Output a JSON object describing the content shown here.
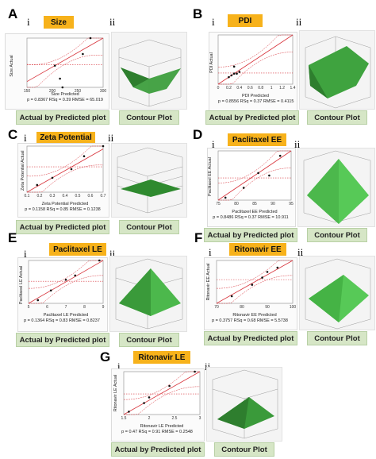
{
  "panels": {
    "A": {
      "letter": "A",
      "left_label": "i",
      "right_label": "ii",
      "tag": "Size",
      "ylabel": "Size Actual",
      "pred_label": "Size Predicted",
      "stats": "p = 0.8367 RSq = 0.39 RMSE = 65.019",
      "xticks": [
        "150",
        "200",
        "250",
        "300"
      ],
      "btn_left": "Actual by Predicted plot",
      "btn_right": "Contour Plot"
    },
    "B": {
      "letter": "B",
      "left_label": "i",
      "right_label": "ii",
      "tag": "PDI",
      "ylabel": "PDI Actual",
      "pred_label": "PDI Predicted",
      "stats": "p = 0.8556 RSq = 0.37 RMSE = 0.4115",
      "xticks": [
        "0",
        "0.2",
        "0.4",
        "0.6",
        "0.8",
        "1",
        "1.2",
        "1.4"
      ],
      "btn_left": "Actual by Predicted plot",
      "btn_right": "Contour Plot"
    },
    "C": {
      "letter": "C",
      "left_label": "i",
      "right_label": "ii",
      "tag": "Zeta Potential",
      "ylabel": "Zeta Potential Actual",
      "pred_label": "Zeta Potential Predicted",
      "stats": "p = 0.1158 RSq = 0.85 RMSE = 0.1238",
      "xticks": [
        "0.1",
        "0.2",
        "0.3",
        "0.4",
        "0.5",
        "0.6",
        "0.7"
      ],
      "btn_left": "Actual by Predicted plot",
      "btn_right": "Contour Plot"
    },
    "D": {
      "letter": "D",
      "left_label": "i",
      "right_label": "ii",
      "tag": "Paclitaxel EE",
      "ylabel": "Paclitaxel EE Actual",
      "pred_label": "Paclitaxel EE Predicted",
      "stats": "p = 0.8486 RSq = 0.37 RMSE = 10.911",
      "xticks": [
        "75",
        "80",
        "85",
        "90",
        "95"
      ],
      "btn_left": "Actual by Predicted plot",
      "btn_right": "Contour Plot"
    },
    "E": {
      "letter": "E",
      "left_label": "i",
      "right_label": "ii",
      "tag": "Paclitaxel LE",
      "ylabel": "Paclitaxel LE Actual",
      "pred_label": "Paclitaxel LE Predicted",
      "stats": "p = 0.1364 RSq = 0.83 RMSE = 0.8237",
      "xticks": [
        "5",
        "6",
        "7",
        "8",
        "9"
      ],
      "btn_left": "Actual by Predicted plot",
      "btn_right": "Contour Plot"
    },
    "F": {
      "letter": "F",
      "left_label": "i",
      "right_label": "ii",
      "tag": "Ritonavir EE",
      "ylabel": "Ritonavir EE Actual",
      "pred_label": "Ritonavir EE Predicted",
      "stats": "p = 0.3757 RSq = 0.68 RMSE = 5.5738",
      "xticks": [
        "70",
        "80",
        "90",
        "100"
      ],
      "btn_left": "Actual by Predicted plot",
      "btn_right": "Contour Plot"
    },
    "G": {
      "letter": "G",
      "left_label": "i",
      "right_label": "ii",
      "tag": "Ritonavir LE",
      "ylabel": "Ritonavir LE Actual",
      "pred_label": "Ritonavir LE Predicted",
      "stats": "p = 0.47 RSq = 0.91 RMSE = 0.2548",
      "xticks": [
        "1.5",
        "2",
        "2.5",
        "3"
      ],
      "btn_left": "Actual by Predicted plot",
      "btn_right": "Contour Plot"
    }
  },
  "colors": {
    "tag": "#f7b21b",
    "button": "#d6e6c6",
    "fit_line": "#d8343c",
    "confidence": "#d8343c",
    "mean_line": "#d8343c",
    "surface": "#3a9a3a",
    "points": "#111111"
  },
  "chart_data": [
    {
      "type": "scatter",
      "title": "Size",
      "ylabel": "Size Actual",
      "xlabel": "Size Predicted",
      "xlim": [
        150,
        300
      ],
      "x": [
        205,
        215,
        220,
        260,
        275
      ],
      "y": [
        205,
        160,
        130,
        245,
        300
      ]
    },
    {
      "type": "scatter",
      "title": "PDI",
      "ylabel": "PDI Actual",
      "xlabel": "PDI Predicted",
      "xlim": [
        0,
        1.4
      ],
      "x": [
        0.2,
        0.25,
        0.3,
        0.35,
        0.4,
        0.3
      ],
      "y": [
        0.2,
        0.25,
        0.3,
        0.3,
        0.35,
        0.5
      ]
    },
    {
      "type": "scatter",
      "title": "Zeta Potential",
      "ylabel": "Zeta Potential Actual",
      "xlabel": "Zeta Potential Predicted",
      "xlim": [
        0.1,
        0.7
      ],
      "x": [
        0.18,
        0.3,
        0.45,
        0.55,
        0.7
      ],
      "y": [
        0.2,
        0.3,
        0.42,
        0.6,
        0.74
      ]
    },
    {
      "type": "scatter",
      "title": "Paclitaxel EE",
      "ylabel": "Paclitaxel EE Actual",
      "xlabel": "Paclitaxel EE Predicted",
      "xlim": [
        75,
        95
      ],
      "x": [
        77,
        82,
        86,
        89,
        92
      ],
      "y": [
        76,
        80,
        86,
        85,
        93
      ]
    },
    {
      "type": "scatter",
      "title": "Paclitaxel LE",
      "ylabel": "Paclitaxel LE Actual",
      "xlabel": "Paclitaxel LE Predicted",
      "xlim": [
        5,
        9
      ],
      "x": [
        5.5,
        6.2,
        7,
        7.5,
        8.8
      ],
      "y": [
        5.3,
        6.2,
        7.2,
        7.6,
        9
      ]
    },
    {
      "type": "scatter",
      "title": "Ritonavir EE",
      "ylabel": "Ritonavir EE Actual",
      "xlabel": "Ritonavir EE Predicted",
      "xlim": [
        70,
        100
      ],
      "x": [
        76,
        84,
        88,
        90,
        94
      ],
      "y": [
        75,
        83,
        88,
        92,
        95
      ]
    },
    {
      "type": "scatter",
      "title": "Ritonavir LE",
      "ylabel": "Ritonavir LE Actual",
      "xlabel": "Ritonavir LE Predicted",
      "xlim": [
        1.5,
        3
      ],
      "x": [
        1.6,
        1.9,
        2.0,
        2.4,
        2.9
      ],
      "y": [
        1.6,
        1.9,
        2.1,
        2.5,
        3.0
      ]
    }
  ]
}
